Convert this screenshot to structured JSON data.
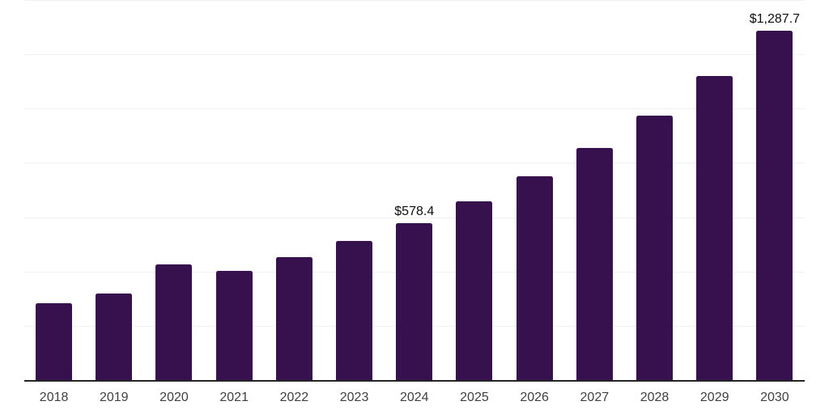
{
  "chart_data": {
    "type": "bar",
    "title": "",
    "xlabel": "",
    "ylabel": "",
    "categories": [
      "2018",
      "2019",
      "2020",
      "2021",
      "2022",
      "2023",
      "2024",
      "2025",
      "2026",
      "2027",
      "2028",
      "2029",
      "2030"
    ],
    "values": [
      283,
      320,
      427,
      402,
      452,
      512,
      578.4,
      658,
      750,
      855,
      975,
      1120,
      1287.7
    ],
    "data_labels": [
      {
        "category": "2024",
        "text": "$578.4"
      },
      {
        "category": "2030",
        "text": "$1,287.7"
      }
    ],
    "ylim": [
      0,
      1400
    ],
    "gridline_step": 200,
    "grid": true,
    "legend_visible": false,
    "y_tick_labels_visible": false,
    "colors": {
      "bar": "#36114E",
      "gridline": "#f0f0f0",
      "axis_line": "#242424",
      "x_tick_label": "#3f3f3f",
      "data_label": "#0d0d0d",
      "background": "#ffffff"
    }
  }
}
